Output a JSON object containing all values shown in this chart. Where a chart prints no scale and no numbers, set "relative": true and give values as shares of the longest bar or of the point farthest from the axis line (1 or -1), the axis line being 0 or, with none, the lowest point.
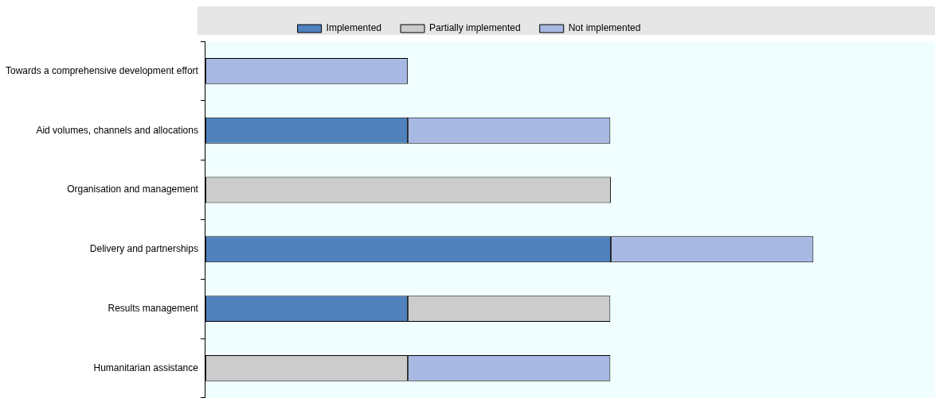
{
  "chart_data": {
    "type": "bar",
    "orientation": "horizontal",
    "stacked": true,
    "relative": true,
    "legend": "top",
    "categories": [
      "Towards a comprehensive development effort",
      "Aid volumes, channels and allocations",
      "Organisation and management",
      "Delivery and partnerships",
      "Results management",
      "Humanitarian assistance"
    ],
    "series": [
      {
        "name": "Implemented",
        "color": "#4f81bd",
        "values": [
          null,
          0.333,
          null,
          0.667,
          0.333,
          null
        ]
      },
      {
        "name": "Partially implemented",
        "color": "#cccccc",
        "values": [
          null,
          null,
          0.667,
          null,
          0.333,
          0.333
        ]
      },
      {
        "name": "Not implemented",
        "color": "#a7b9e3",
        "values": [
          0.333,
          0.333,
          null,
          0.333,
          null,
          0.333
        ]
      }
    ]
  }
}
